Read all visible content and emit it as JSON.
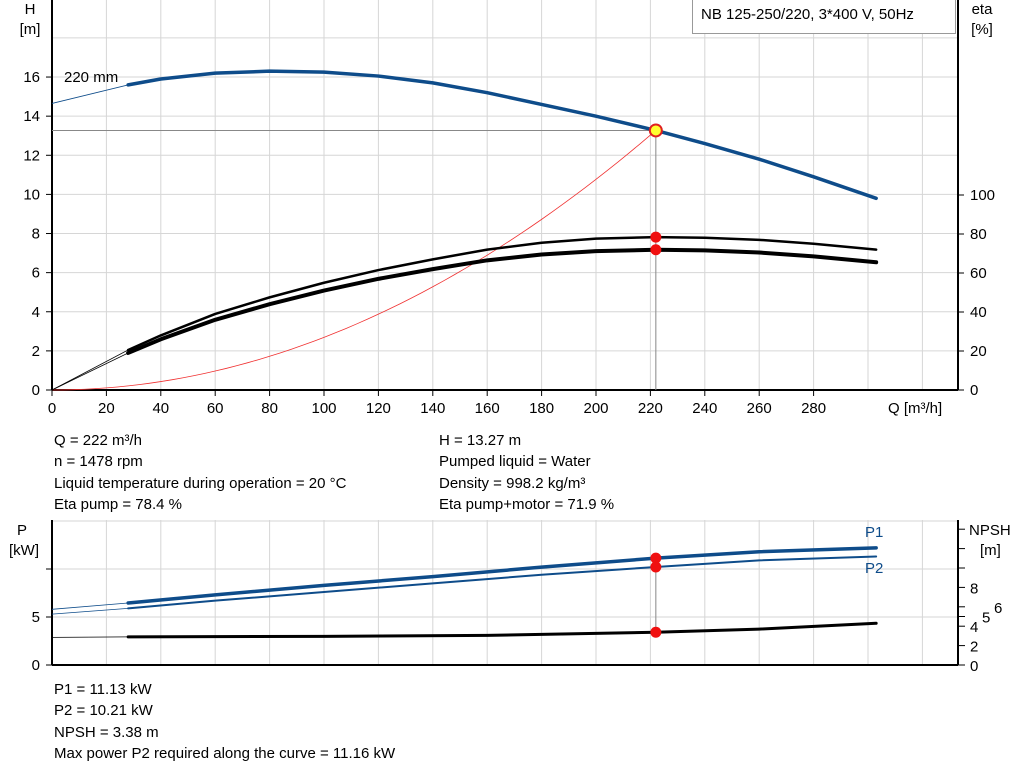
{
  "chart_data": [
    {
      "type": "line",
      "title": "NB 125-250/220, 3*400 V, 50Hz",
      "xlabel": "Q [m³/h]",
      "ylabel": "H",
      "ylabel_unit": "[m]",
      "y2label": "eta",
      "y2label_unit": "[%]",
      "xlim": [
        0,
        333
      ],
      "ylim": [
        0,
        20
      ],
      "y2lim": [
        0,
        100
      ],
      "xticks": [
        0,
        20,
        40,
        60,
        80,
        100,
        120,
        140,
        160,
        180,
        200,
        220,
        240,
        260,
        280
      ],
      "yticks": [
        0,
        2,
        4,
        6,
        8,
        10,
        12,
        14,
        16
      ],
      "y2ticks": [
        0,
        20,
        40,
        60,
        80,
        100
      ],
      "curve_label": "220 mm",
      "series": [
        {
          "name": "H",
          "color": "#0e4c8a",
          "x": [
            28,
            40,
            60,
            80,
            100,
            120,
            140,
            160,
            180,
            200,
            222,
            240,
            260,
            280,
            303
          ],
          "y": [
            15.6,
            15.9,
            16.2,
            16.3,
            16.25,
            16.05,
            15.7,
            15.2,
            14.6,
            14.0,
            13.27,
            12.6,
            11.8,
            10.9,
            9.8
          ],
          "extension_start": 14.65
        },
        {
          "name": "Eta pump",
          "axis": "eta",
          "color": "#000",
          "x": [
            28,
            40,
            60,
            80,
            100,
            120,
            140,
            160,
            180,
            200,
            222,
            240,
            260,
            280,
            303
          ],
          "y": [
            20.5,
            28,
            39,
            47.5,
            55,
            61.5,
            67,
            72,
            75.5,
            77.6,
            78.4,
            78.1,
            77,
            75,
            72
          ]
        },
        {
          "name": "Eta pump+motor",
          "axis": "eta",
          "color": "#000",
          "x": [
            28,
            40,
            60,
            80,
            100,
            120,
            140,
            160,
            180,
            200,
            222,
            240,
            260,
            280,
            303
          ],
          "y": [
            19,
            26,
            36,
            44,
            51,
            57,
            62,
            66.5,
            69.5,
            71.2,
            71.9,
            71.6,
            70.5,
            68.5,
            65.5
          ]
        },
        {
          "name": "System curve",
          "color": "#f03030",
          "type": "quadratic",
          "through": [
            222,
            13.27
          ]
        }
      ],
      "operating_point": {
        "Q": 222,
        "H": 13.27,
        "eta_pump": 78.4,
        "eta_total": 71.9
      }
    },
    {
      "type": "line",
      "ylabel": "P",
      "ylabel_unit": "[kW]",
      "y2label": "NPSH",
      "y2label_unit": "[m]",
      "xlim": [
        0,
        333
      ],
      "ylim": [
        0,
        15
      ],
      "yticks": [
        0,
        5
      ],
      "y2ticks": [
        0,
        2,
        4,
        5,
        6,
        8
      ],
      "series": [
        {
          "name": "P1",
          "color": "#0e4c8a",
          "x": [
            28,
            60,
            100,
            140,
            180,
            222,
            260,
            303
          ],
          "y": [
            6.46,
            7.3,
            8.3,
            9.2,
            10.2,
            11.13,
            11.8,
            12.2
          ],
          "extension_start": 5.8
        },
        {
          "name": "P2",
          "color": "#0e4c8a",
          "x": [
            28,
            60,
            100,
            140,
            180,
            222,
            260,
            303
          ],
          "y": [
            5.9,
            6.7,
            7.6,
            8.5,
            9.4,
            10.21,
            10.9,
            11.3
          ],
          "extension_start": 5.3
        },
        {
          "name": "NPSH",
          "axis": "npsh",
          "color": "#000",
          "x": [
            28,
            100,
            160,
            222,
            260,
            303
          ],
          "y": [
            2.9,
            2.95,
            3.05,
            3.38,
            3.7,
            4.3
          ],
          "extension_start": 2.85
        }
      ],
      "operating_point": {
        "Q": 222,
        "P1": 11.13,
        "P2": 10.21,
        "NPSH": 3.38
      }
    }
  ],
  "info_top": {
    "q": "Q = 222 m³/h",
    "n": "n = 1478 rpm",
    "temp": "Liquid temperature during operation = 20 °C",
    "eta_pump": "Eta pump = 78.4 %",
    "h": "H = 13.27 m",
    "liquid": "Pumped liquid = Water",
    "density": "Density = 998.2 kg/m³",
    "eta_total": "Eta pump+motor = 71.9 %"
  },
  "info_bottom": {
    "p1": "P1 = 11.13 kW",
    "p2": "P2 = 10.21 kW",
    "npsh": "NPSH = 3.38 m",
    "max_p2": "Max power P2 required along the curve = 11.16 kW"
  }
}
